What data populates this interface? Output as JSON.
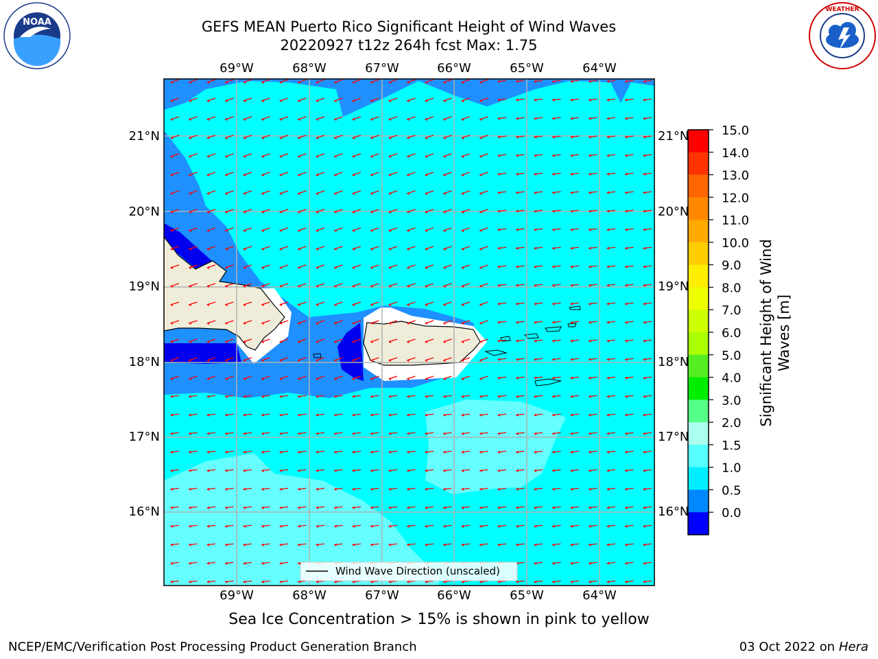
{
  "title_line1": "GEFS MEAN Puerto Rico Significant Height of Wind Waves",
  "title_line2": "20220927 t12z 264h fcst   Max: 1.75",
  "longitude_ticks": [
    "69°W",
    "68°W",
    "67°W",
    "66°W",
    "65°W",
    "64°W"
  ],
  "latitude_ticks": [
    "21°N",
    "20°N",
    "19°N",
    "18°N",
    "17°N",
    "16°N"
  ],
  "legend_label": "Wind Wave Direction (unscaled)",
  "colorbar": {
    "label": "Significant Height of Wind Waves [m]",
    "ticks": [
      "15.0",
      "14.0",
      "13.0",
      "12.0",
      "11.0",
      "10.0",
      "9.0",
      "8.0",
      "7.0",
      "6.0",
      "5.0",
      "4.0",
      "3.0",
      "2.0",
      "1.5",
      "1.0",
      "0.5",
      "0.0"
    ],
    "colors": [
      "#ff0000",
      "#ff3300",
      "#ff6600",
      "#ff8800",
      "#ffaa00",
      "#ffcc00",
      "#ffee00",
      "#eeff00",
      "#ccff00",
      "#aaff00",
      "#55ee22",
      "#00ee00",
      "#55ff88",
      "#aaffee",
      "#55ffff",
      "#00eeff",
      "#0088ff",
      "#0000ff"
    ]
  },
  "sea_ice_note": "Sea Ice Concentration > 15% is shown in pink to yellow",
  "footer_left": "NCEP/EMC/Verification Post Processing Product Generation Branch",
  "footer_right_prefix": "03 Oct 2022 on ",
  "footer_right_host": "Hera",
  "logos": {
    "left": "NOAA",
    "right": "NATIONAL WEATHER SERVICE"
  },
  "colors": {
    "water_low": "#00ffff",
    "water_mid": "#1e90ff",
    "water_deep": "#0000ee",
    "land": "#efedda",
    "arrow": "#ff0000",
    "grid": "#b0b0b0"
  }
}
